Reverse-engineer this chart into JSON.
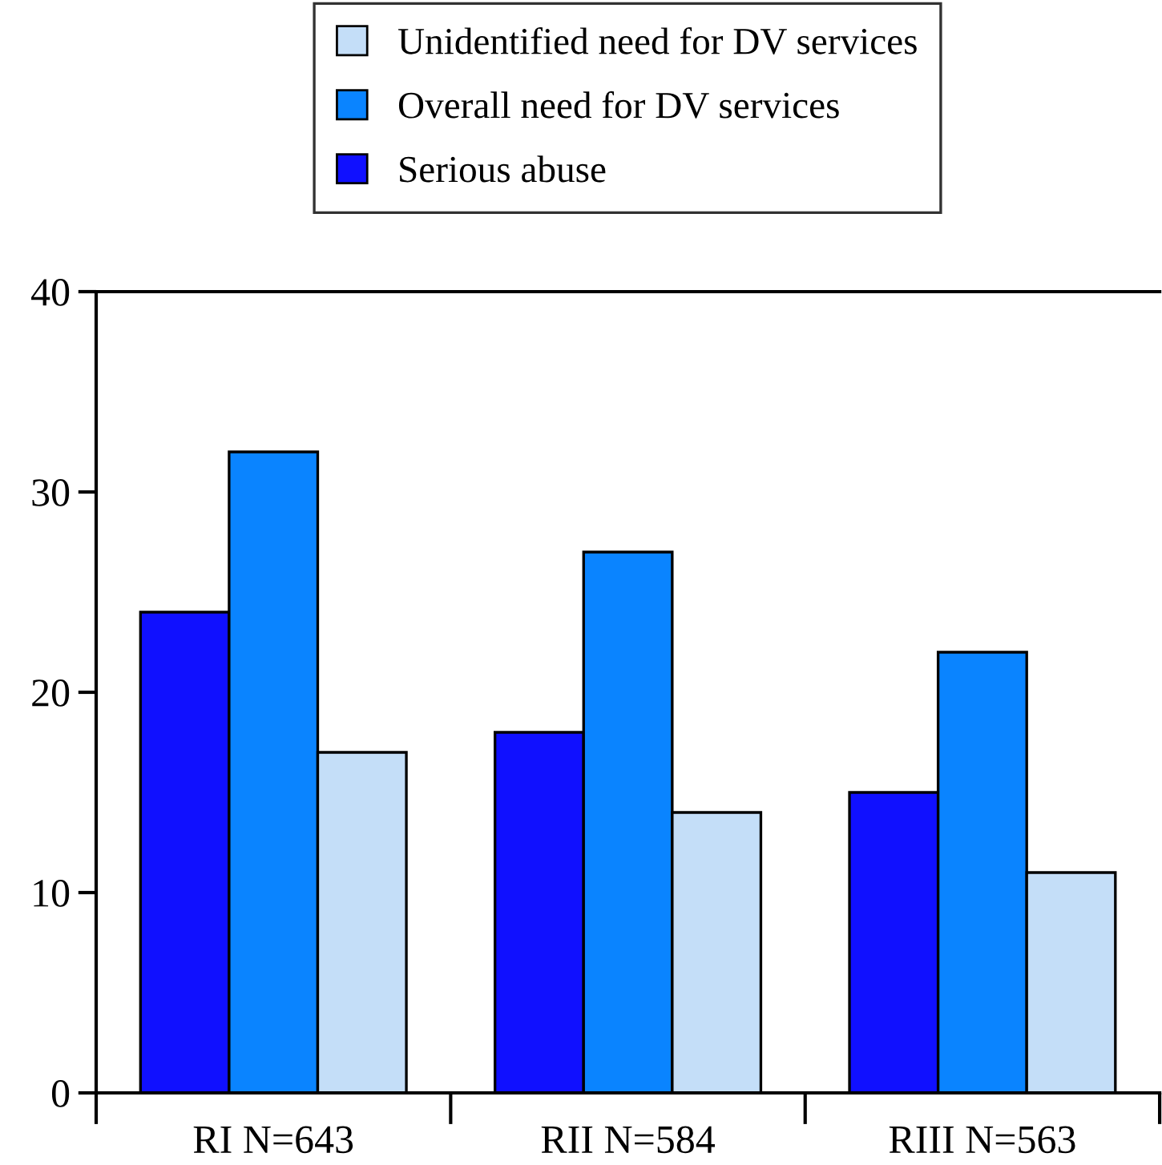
{
  "chart_data": {
    "type": "bar",
    "categories": [
      "RI N=643",
      "RII N=584",
      "RIII N=563"
    ],
    "series": [
      {
        "name": "Serious abuse",
        "color": "#1010ff",
        "values": [
          24,
          18,
          15
        ]
      },
      {
        "name": "Overall need for DV services",
        "color": "#0a84ff",
        "values": [
          32,
          27,
          22
        ]
      },
      {
        "name": "Unidentified need for DV services",
        "color": "#c4def8",
        "values": [
          17,
          14,
          11
        ]
      }
    ],
    "ylim": [
      0,
      40
    ],
    "yticks": [
      0,
      10,
      20,
      30,
      40
    ],
    "grid": false,
    "legend": "top"
  }
}
